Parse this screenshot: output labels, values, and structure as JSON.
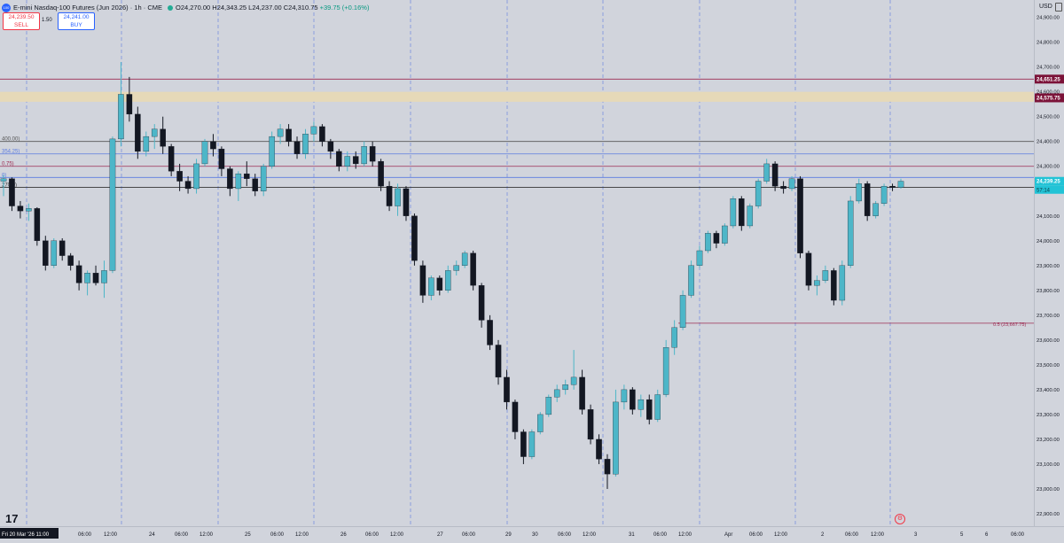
{
  "header": {
    "symbol_badge": "100",
    "title": "E-mini Nasdaq-100 Futures (Jun 2026) · 1h · CME",
    "ohlc": "O24,270.00 H24,343.25 L24,237.00 C24,310.75",
    "change": "+39.75 (+0.16%)"
  },
  "trade": {
    "sell_price": "24,239.50",
    "sell_label": "SELL",
    "spread": "1.50",
    "buy_price": "24,241.00",
    "buy_label": "BUY"
  },
  "currency": "USD",
  "logo_text": "17",
  "price_axis": {
    "range": [
      22850,
      24970
    ],
    "ticks": [
      {
        "value": 24900,
        "label": "24,900.00"
      },
      {
        "value": 24800,
        "label": "24,800.00"
      },
      {
        "value": 24700,
        "label": "24,700.00"
      },
      {
        "value": 24600,
        "label": "24,600.00"
      },
      {
        "value": 24500,
        "label": "24,500.00"
      },
      {
        "value": 24400,
        "label": "24,400.00"
      },
      {
        "value": 24300,
        "label": "24,300.00"
      },
      {
        "value": 24200,
        "label": "24,200.00"
      },
      {
        "value": 24100,
        "label": "24,100.00"
      },
      {
        "value": 24000,
        "label": "24,000.00"
      },
      {
        "value": 23900,
        "label": "23,900.00"
      },
      {
        "value": 23800,
        "label": "23,800.00"
      },
      {
        "value": 23700,
        "label": "23,700.00"
      },
      {
        "value": 23600,
        "label": "23,600.00"
      },
      {
        "value": 23500,
        "label": "23,500.00"
      },
      {
        "value": 23400,
        "label": "23,400.00"
      },
      {
        "value": 23300,
        "label": "23,300.00"
      },
      {
        "value": 23200,
        "label": "23,200.00"
      },
      {
        "value": 23100,
        "label": "23,100.00"
      },
      {
        "value": 23000,
        "label": "23,000.00"
      },
      {
        "value": 22900,
        "label": "22,900.00"
      }
    ],
    "badges": [
      {
        "value": 24651.25,
        "label": "24,651.25",
        "color": "#7b1238"
      },
      {
        "value": 24575.75,
        "label": "24,575.75",
        "color": "#7b1238"
      },
      {
        "value": 24239.25,
        "label": "24,239.25",
        "color": "#22c3d6"
      }
    ],
    "countdown": "57:14"
  },
  "levels": [
    {
      "value": 24651.25,
      "color": "#9c2b52"
    },
    {
      "value": 24400,
      "color": "#555555",
      "label": "400.00)"
    },
    {
      "value": 24350,
      "color": "#5b7be0",
      "label": "354.25)"
    },
    {
      "value": 24300,
      "color": "#9c2b52",
      "label": "0.75)"
    },
    {
      "value": 24255,
      "color": "#5b7be0",
      "label": "0)"
    },
    {
      "value": 24215,
      "color": "#333333",
      "label": "270.0)"
    }
  ],
  "zone": {
    "from": 24560,
    "to": 24600,
    "color": "#e6d9b8"
  },
  "fib": {
    "label": "0.5 (23,667.75)",
    "value": 23667.75,
    "color": "#9c2b52"
  },
  "time_axis": {
    "labels": [
      {
        "text": "Fri 20 Mar '26  11:00",
        "highlight": true
      },
      {
        "text": "06:00"
      },
      {
        "text": "12:00"
      },
      {
        "text": "24"
      },
      {
        "text": "06:00"
      },
      {
        "text": "12:00"
      },
      {
        "text": "25"
      },
      {
        "text": "06:00"
      },
      {
        "text": "12:00"
      },
      {
        "text": "26"
      },
      {
        "text": "06:00"
      },
      {
        "text": "12:00"
      },
      {
        "text": "27"
      },
      {
        "text": "06:00"
      },
      {
        "text": "29"
      },
      {
        "text": "30"
      },
      {
        "text": "06:00"
      },
      {
        "text": "12:00"
      },
      {
        "text": "31"
      },
      {
        "text": "06:00"
      },
      {
        "text": "12:00"
      },
      {
        "text": "Apr"
      },
      {
        "text": "06:00"
      },
      {
        "text": "12:00"
      },
      {
        "text": "2"
      },
      {
        "text": "06:00"
      },
      {
        "text": "12:00"
      },
      {
        "text": "3"
      },
      {
        "text": "5"
      },
      {
        "text": "6"
      },
      {
        "text": "06:00"
      }
    ]
  },
  "colors": {
    "up": "#4db6c8",
    "down": "#131722",
    "background": "#d1d4dc",
    "session_line": "#5b7be0"
  },
  "chart_data": {
    "type": "candlestick",
    "ohlc": [
      [
        24240,
        24265,
        24180,
        24250
      ],
      [
        24250,
        24255,
        24120,
        24140
      ],
      [
        24140,
        24160,
        24090,
        24120
      ],
      [
        24120,
        24150,
        24080,
        24130
      ],
      [
        24130,
        24135,
        23980,
        24000
      ],
      [
        24000,
        24020,
        23880,
        23900
      ],
      [
        23900,
        24010,
        23890,
        24000
      ],
      [
        24000,
        24010,
        23920,
        23940
      ],
      [
        23940,
        23950,
        23880,
        23900
      ],
      [
        23900,
        23920,
        23800,
        23830
      ],
      [
        23830,
        23880,
        23780,
        23870
      ],
      [
        23870,
        23900,
        23820,
        23830
      ],
      [
        23830,
        23920,
        23770,
        23880
      ],
      [
        23880,
        24420,
        23870,
        24410
      ],
      [
        24410,
        24720,
        24380,
        24590
      ],
      [
        24590,
        24660,
        24480,
        24510
      ],
      [
        24510,
        24540,
        24330,
        24360
      ],
      [
        24360,
        24440,
        24340,
        24420
      ],
      [
        24420,
        24470,
        24370,
        24450
      ],
      [
        24450,
        24500,
        24350,
        24380
      ],
      [
        24380,
        24390,
        24260,
        24280
      ],
      [
        24280,
        24310,
        24200,
        24240
      ],
      [
        24240,
        24260,
        24190,
        24210
      ],
      [
        24210,
        24330,
        24190,
        24310
      ],
      [
        24310,
        24410,
        24300,
        24400
      ],
      [
        24400,
        24430,
        24340,
        24370
      ],
      [
        24370,
        24380,
        24260,
        24290
      ],
      [
        24290,
        24300,
        24180,
        24210
      ],
      [
        24210,
        24280,
        24160,
        24270
      ],
      [
        24270,
        24320,
        24220,
        24250
      ],
      [
        24250,
        24270,
        24180,
        24200
      ],
      [
        24200,
        24310,
        24180,
        24300
      ],
      [
        24300,
        24440,
        24290,
        24420
      ],
      [
        24420,
        24470,
        24390,
        24450
      ],
      [
        24450,
        24470,
        24380,
        24400
      ],
      [
        24400,
        24420,
        24330,
        24350
      ],
      [
        24350,
        24450,
        24330,
        24430
      ],
      [
        24430,
        24480,
        24400,
        24460
      ],
      [
        24460,
        24470,
        24380,
        24400
      ],
      [
        24400,
        24410,
        24330,
        24360
      ],
      [
        24360,
        24370,
        24280,
        24300
      ],
      [
        24300,
        24360,
        24280,
        24340
      ],
      [
        24340,
        24360,
        24290,
        24310
      ],
      [
        24310,
        24400,
        24300,
        24380
      ],
      [
        24380,
        24400,
        24300,
        24320
      ],
      [
        24320,
        24330,
        24200,
        24220
      ],
      [
        24220,
        24240,
        24120,
        24140
      ],
      [
        24140,
        24230,
        24100,
        24210
      ],
      [
        24210,
        24220,
        24080,
        24100
      ],
      [
        24100,
        24110,
        23900,
        23920
      ],
      [
        23900,
        23920,
        23750,
        23780
      ],
      [
        23780,
        23860,
        23760,
        23850
      ],
      [
        23850,
        23860,
        23780,
        23800
      ],
      [
        23800,
        23900,
        23790,
        23880
      ],
      [
        23880,
        23920,
        23860,
        23900
      ],
      [
        23900,
        23960,
        23890,
        23950
      ],
      [
        23950,
        23960,
        23800,
        23820
      ],
      [
        23820,
        23830,
        23650,
        23680
      ],
      [
        23680,
        23700,
        23560,
        23580
      ],
      [
        23580,
        23600,
        23420,
        23450
      ],
      [
        23450,
        23480,
        23320,
        23350
      ],
      [
        23350,
        23360,
        23200,
        23230
      ],
      [
        23230,
        23240,
        23100,
        23130
      ],
      [
        23130,
        23240,
        23120,
        23230
      ],
      [
        23230,
        23310,
        23220,
        23300
      ],
      [
        23300,
        23380,
        23290,
        23370
      ],
      [
        23370,
        23420,
        23350,
        23400
      ],
      [
        23400,
        23440,
        23380,
        23420
      ],
      [
        23420,
        23560,
        23400,
        23450
      ],
      [
        23450,
        23480,
        23300,
        23320
      ],
      [
        23320,
        23340,
        23180,
        23200
      ],
      [
        23200,
        23220,
        23100,
        23120
      ],
      [
        23120,
        23140,
        23000,
        23060
      ],
      [
        23060,
        23400,
        23050,
        23350
      ],
      [
        23350,
        23420,
        23320,
        23400
      ],
      [
        23400,
        23410,
        23300,
        23320
      ],
      [
        23320,
        23380,
        23290,
        23360
      ],
      [
        23360,
        23380,
        23260,
        23280
      ],
      [
        23280,
        23400,
        23270,
        23380
      ],
      [
        23380,
        23600,
        23370,
        23570
      ],
      [
        23570,
        23680,
        23540,
        23650
      ],
      [
        23650,
        23800,
        23640,
        23780
      ],
      [
        23780,
        23920,
        23770,
        23900
      ],
      [
        23900,
        23980,
        23890,
        23960
      ],
      [
        23960,
        24040,
        23950,
        24030
      ],
      [
        24030,
        24040,
        23970,
        23990
      ],
      [
        23990,
        24070,
        23980,
        24060
      ],
      [
        24060,
        24180,
        24050,
        24170
      ],
      [
        24170,
        24180,
        24040,
        24060
      ],
      [
        24060,
        24150,
        24050,
        24140
      ],
      [
        24140,
        24250,
        24130,
        24240
      ],
      [
        24240,
        24330,
        24230,
        24310
      ],
      [
        24310,
        24320,
        24200,
        24220
      ],
      [
        24220,
        24240,
        24190,
        24210
      ],
      [
        24210,
        24260,
        24200,
        24250
      ],
      [
        24250,
        24260,
        23930,
        23950
      ],
      [
        23950,
        23960,
        23800,
        23820
      ],
      [
        23820,
        23860,
        23780,
        23840
      ],
      [
        23840,
        23900,
        23830,
        23880
      ],
      [
        23880,
        23890,
        23740,
        23760
      ],
      [
        23760,
        23920,
        23740,
        23900
      ],
      [
        23900,
        24180,
        23890,
        24160
      ],
      [
        24160,
        24250,
        24150,
        24230
      ],
      [
        24230,
        24240,
        24080,
        24100
      ],
      [
        24100,
        24160,
        24090,
        24150
      ],
      [
        24150,
        24230,
        24140,
        24220
      ],
      [
        24220,
        24230,
        24200,
        24215
      ],
      [
        24215,
        24250,
        24210,
        24240
      ]
    ],
    "ylim": [
      22850,
      24970
    ]
  }
}
